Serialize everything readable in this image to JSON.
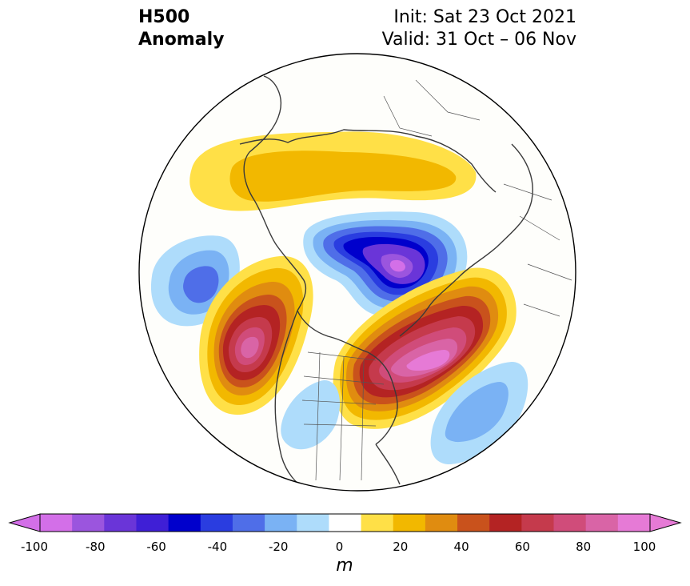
{
  "header": {
    "title_line1": "H500",
    "title_line2": "Anomaly",
    "init_text": "Init: Sat 23 Oct 2021",
    "valid_text": "Valid: 31 Oct – 06 Nov"
  },
  "colorbar": {
    "unit": "m",
    "ticks": [
      "-100",
      "-80",
      "-60",
      "-40",
      "-20",
      "0",
      "20",
      "40",
      "60",
      "80",
      "100"
    ],
    "levels": [
      -100,
      -90,
      -80,
      -70,
      -60,
      -50,
      -40,
      -30,
      -20,
      -10,
      10,
      20,
      30,
      40,
      50,
      60,
      70,
      80,
      90,
      100
    ],
    "colors": [
      "#d36fe8",
      "#9b55de",
      "#6a35d8",
      "#3f1fd6",
      "#0000cc",
      "#2a3de0",
      "#4f6ee8",
      "#7ab2f4",
      "#aedcfb",
      "#ffffff",
      "#ffe047",
      "#f2b800",
      "#e08c10",
      "#c9521c",
      "#b42323",
      "#c53a4c",
      "#d04c7a",
      "#d964a6",
      "#e67ad6"
    ],
    "under_color": "#d36fe8",
    "over_color": "#e67ad6"
  },
  "map": {
    "projection": "north-polar-stereographic",
    "anomalies": [
      {
        "name": "positive-north-eurasia",
        "peak": 35
      },
      {
        "name": "negative-siberia-arctic",
        "peak": -95
      },
      {
        "name": "negative-north-atlantic",
        "peak": -45
      },
      {
        "name": "positive-gulf-of-alaska",
        "peak": 85
      },
      {
        "name": "positive-hudson-bay-canada",
        "peak": 95
      },
      {
        "name": "negative-western-us",
        "peak": -25
      },
      {
        "name": "negative-north-pacific",
        "peak": -40
      }
    ]
  }
}
